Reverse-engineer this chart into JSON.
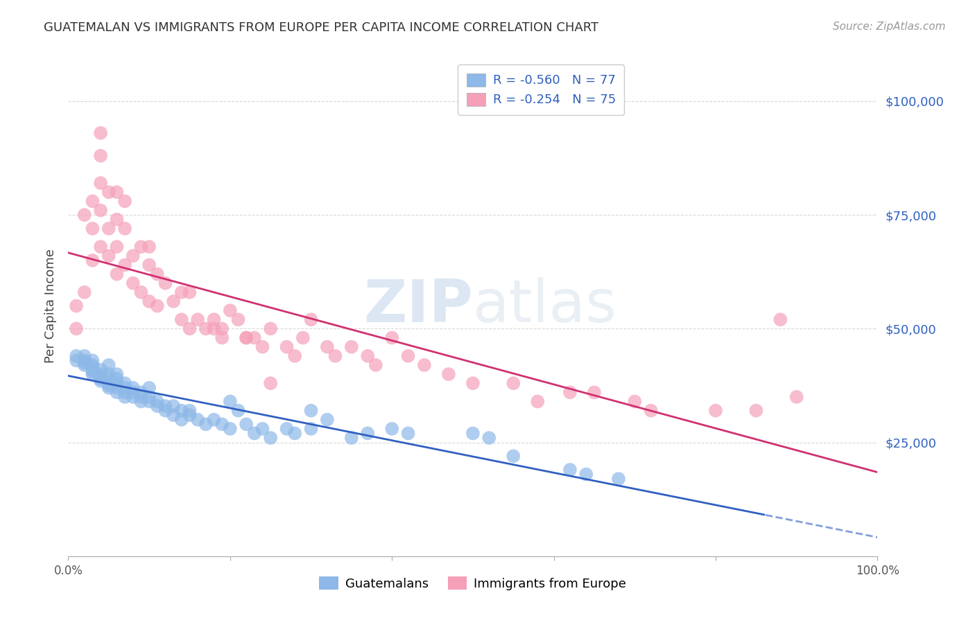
{
  "title": "GUATEMALAN VS IMMIGRANTS FROM EUROPE PER CAPITA INCOME CORRELATION CHART",
  "source": "Source: ZipAtlas.com",
  "ylabel": "Per Capita Income",
  "ytick_labels": [
    "$25,000",
    "$50,000",
    "$75,000",
    "$100,000"
  ],
  "ytick_values": [
    25000,
    50000,
    75000,
    100000
  ],
  "ylim": [
    0,
    110000
  ],
  "xlim": [
    0.0,
    1.0
  ],
  "legend_label1": "Guatemalans",
  "legend_label2": "Immigrants from Europe",
  "R1": -0.56,
  "N1": 77,
  "R2": -0.254,
  "N2": 75,
  "color_blue": "#8db8e8",
  "color_pink": "#f5a0b8",
  "color_blue_line": "#3060c0",
  "color_pink_line": "#d03070",
  "watermark_zip": "ZIP",
  "watermark_atlas": "atlas",
  "background_color": "#ffffff",
  "gridline_color": "#d8d8d8",
  "blue_scatter_x": [
    0.01,
    0.01,
    0.02,
    0.02,
    0.02,
    0.02,
    0.03,
    0.03,
    0.03,
    0.03,
    0.03,
    0.03,
    0.04,
    0.04,
    0.04,
    0.04,
    0.04,
    0.05,
    0.05,
    0.05,
    0.05,
    0.05,
    0.05,
    0.06,
    0.06,
    0.06,
    0.06,
    0.06,
    0.07,
    0.07,
    0.07,
    0.07,
    0.08,
    0.08,
    0.08,
    0.09,
    0.09,
    0.09,
    0.1,
    0.1,
    0.1,
    0.11,
    0.11,
    0.12,
    0.12,
    0.13,
    0.13,
    0.14,
    0.14,
    0.15,
    0.15,
    0.16,
    0.17,
    0.18,
    0.19,
    0.2,
    0.2,
    0.21,
    0.22,
    0.23,
    0.24,
    0.25,
    0.27,
    0.28,
    0.3,
    0.3,
    0.32,
    0.35,
    0.37,
    0.4,
    0.42,
    0.5,
    0.52,
    0.55,
    0.62,
    0.64,
    0.68
  ],
  "blue_scatter_y": [
    44000,
    43000,
    44000,
    43000,
    42500,
    42000,
    43000,
    42000,
    41500,
    41000,
    40500,
    40000,
    41000,
    40000,
    39500,
    39000,
    38500,
    42000,
    40000,
    39000,
    38000,
    37500,
    37000,
    40000,
    39000,
    38000,
    37000,
    36000,
    38000,
    37000,
    36000,
    35000,
    37000,
    36000,
    35000,
    36000,
    35000,
    34000,
    37000,
    35000,
    34000,
    34000,
    33000,
    33000,
    32000,
    33000,
    31000,
    32000,
    30000,
    32000,
    31000,
    30000,
    29000,
    30000,
    29000,
    34000,
    28000,
    32000,
    29000,
    27000,
    28000,
    26000,
    28000,
    27000,
    32000,
    28000,
    30000,
    26000,
    27000,
    28000,
    27000,
    27000,
    26000,
    22000,
    19000,
    18000,
    17000
  ],
  "pink_scatter_x": [
    0.01,
    0.01,
    0.02,
    0.02,
    0.03,
    0.03,
    0.03,
    0.04,
    0.04,
    0.04,
    0.04,
    0.05,
    0.05,
    0.05,
    0.06,
    0.06,
    0.06,
    0.07,
    0.07,
    0.08,
    0.08,
    0.09,
    0.09,
    0.1,
    0.1,
    0.11,
    0.11,
    0.12,
    0.13,
    0.14,
    0.14,
    0.15,
    0.15,
    0.16,
    0.17,
    0.18,
    0.19,
    0.2,
    0.21,
    0.22,
    0.23,
    0.24,
    0.25,
    0.27,
    0.28,
    0.29,
    0.3,
    0.32,
    0.33,
    0.35,
    0.37,
    0.38,
    0.4,
    0.42,
    0.44,
    0.47,
    0.5,
    0.55,
    0.58,
    0.62,
    0.65,
    0.7,
    0.72,
    0.8,
    0.85,
    0.9,
    0.04,
    0.06,
    0.07,
    0.1,
    0.18,
    0.19,
    0.22,
    0.25,
    0.88
  ],
  "pink_scatter_y": [
    55000,
    50000,
    75000,
    58000,
    78000,
    72000,
    65000,
    93000,
    82000,
    76000,
    68000,
    80000,
    72000,
    66000,
    74000,
    68000,
    62000,
    72000,
    64000,
    66000,
    60000,
    68000,
    58000,
    64000,
    56000,
    62000,
    55000,
    60000,
    56000,
    58000,
    52000,
    58000,
    50000,
    52000,
    50000,
    50000,
    48000,
    54000,
    52000,
    48000,
    48000,
    46000,
    50000,
    46000,
    44000,
    48000,
    52000,
    46000,
    44000,
    46000,
    44000,
    42000,
    48000,
    44000,
    42000,
    40000,
    38000,
    38000,
    34000,
    36000,
    36000,
    34000,
    32000,
    32000,
    32000,
    35000,
    88000,
    80000,
    78000,
    68000,
    52000,
    50000,
    48000,
    38000,
    52000
  ]
}
